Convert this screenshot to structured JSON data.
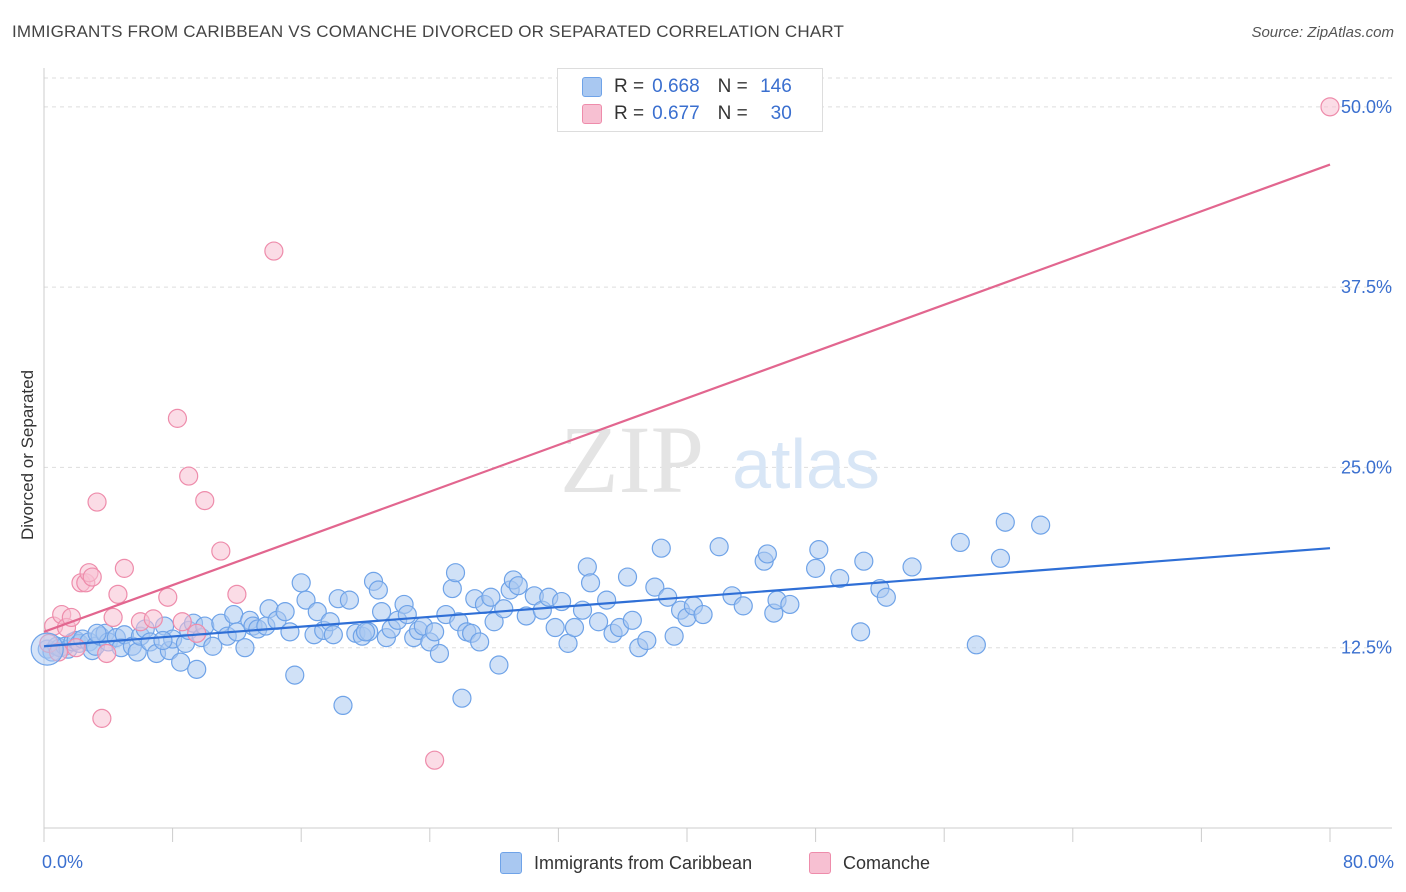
{
  "title": "IMMIGRANTS FROM CARIBBEAN VS COMANCHE DIVORCED OR SEPARATED CORRELATION CHART",
  "source": "Source: ZipAtlas.com",
  "watermark": {
    "zip": "ZIP",
    "atlas": "atlas"
  },
  "colors": {
    "blue": "#6fa3e8",
    "blue_fill": "#a9c8f1",
    "blue_line": "#2f6fd6",
    "pink": "#ee8cab",
    "pink_fill": "#f7c0d2",
    "pink_line": "#e2668f",
    "axis_label": "#3a6fcf"
  },
  "legend_top": {
    "rows": [
      {
        "r_label": "R =",
        "r_value": "0.668",
        "n_label": "N =",
        "n_value": "146"
      },
      {
        "r_label": "R =",
        "r_value": "0.677",
        "n_label": "N =",
        "n_value": "30"
      }
    ]
  },
  "chart_data": {
    "type": "scatter",
    "title": "IMMIGRANTS FROM CARIBBEAN VS COMANCHE DIVORCED OR SEPARATED CORRELATION CHART",
    "xlabel": "",
    "ylabel": "Divorced or Separated",
    "xlim": [
      0,
      80
    ],
    "ylim": [
      0,
      52
    ],
    "x_tick_labels": [
      "0.0%",
      "80.0%"
    ],
    "y_ticks": [
      12.5,
      25.0,
      37.5,
      50.0
    ],
    "y_tick_labels": [
      "12.5%",
      "25.0%",
      "37.5%",
      "50.0%"
    ],
    "grid": true,
    "legend_placement": "bottom",
    "series": [
      {
        "name": "Immigrants from Caribbean",
        "color": "#6fa3e8",
        "trend": {
          "x": [
            0,
            80
          ],
          "y": [
            12.6,
            19.4
          ]
        },
        "points": [
          [
            0.2,
            12.4
          ],
          [
            0.5,
            12.2
          ],
          [
            0.8,
            12.6
          ],
          [
            1.0,
            12.5
          ],
          [
            1.3,
            12.6
          ],
          [
            1.5,
            12.4
          ],
          [
            1.8,
            12.9
          ],
          [
            2.0,
            13.0
          ],
          [
            2.2,
            12.8
          ],
          [
            2.4,
            13.1
          ],
          [
            2.8,
            12.9
          ],
          [
            3.0,
            12.3
          ],
          [
            3.2,
            12.6
          ],
          [
            3.5,
            13.3
          ],
          [
            3.8,
            13.5
          ],
          [
            4.0,
            12.9
          ],
          [
            4.5,
            13.2
          ],
          [
            4.8,
            12.5
          ],
          [
            5.0,
            13.4
          ],
          [
            5.5,
            12.6
          ],
          [
            5.8,
            12.2
          ],
          [
            6.0,
            13.3
          ],
          [
            6.3,
            13.8
          ],
          [
            6.6,
            12.9
          ],
          [
            7.0,
            12.1
          ],
          [
            7.5,
            14.0
          ],
          [
            7.8,
            12.3
          ],
          [
            8.0,
            13.1
          ],
          [
            8.5,
            11.5
          ],
          [
            8.8,
            12.8
          ],
          [
            9.0,
            13.7
          ],
          [
            9.3,
            14.2
          ],
          [
            9.5,
            11.0
          ],
          [
            9.8,
            13.2
          ],
          [
            10.0,
            14.0
          ],
          [
            10.5,
            12.6
          ],
          [
            11.0,
            14.2
          ],
          [
            11.4,
            13.3
          ],
          [
            11.8,
            14.8
          ],
          [
            12.0,
            13.6
          ],
          [
            12.5,
            12.5
          ],
          [
            12.8,
            14.4
          ],
          [
            13.0,
            14.0
          ],
          [
            13.3,
            13.8
          ],
          [
            13.8,
            14.0
          ],
          [
            14.0,
            15.2
          ],
          [
            14.5,
            14.4
          ],
          [
            15.0,
            15.0
          ],
          [
            15.3,
            13.6
          ],
          [
            15.6,
            10.6
          ],
          [
            16.0,
            17.0
          ],
          [
            16.3,
            15.8
          ],
          [
            16.8,
            13.4
          ],
          [
            17.0,
            15.0
          ],
          [
            17.4,
            13.7
          ],
          [
            17.8,
            14.3
          ],
          [
            18.0,
            13.4
          ],
          [
            18.3,
            15.9
          ],
          [
            18.6,
            8.5
          ],
          [
            19.0,
            15.8
          ],
          [
            19.4,
            13.5
          ],
          [
            19.8,
            13.3
          ],
          [
            20.2,
            13.6
          ],
          [
            20.5,
            17.1
          ],
          [
            20.8,
            16.5
          ],
          [
            21.0,
            15.0
          ],
          [
            21.3,
            13.2
          ],
          [
            21.6,
            13.8
          ],
          [
            22.0,
            14.4
          ],
          [
            22.4,
            15.5
          ],
          [
            22.6,
            14.8
          ],
          [
            23.0,
            13.2
          ],
          [
            23.3,
            13.7
          ],
          [
            23.6,
            14.0
          ],
          [
            24.0,
            12.9
          ],
          [
            24.3,
            13.6
          ],
          [
            24.6,
            12.1
          ],
          [
            25.0,
            14.8
          ],
          [
            25.4,
            16.6
          ],
          [
            25.6,
            17.7
          ],
          [
            25.8,
            14.3
          ],
          [
            26.0,
            9.0
          ],
          [
            26.3,
            13.6
          ],
          [
            26.6,
            13.5
          ],
          [
            26.8,
            15.9
          ],
          [
            27.1,
            12.9
          ],
          [
            27.4,
            15.5
          ],
          [
            27.8,
            16.0
          ],
          [
            28.0,
            14.3
          ],
          [
            28.3,
            11.3
          ],
          [
            28.6,
            15.2
          ],
          [
            29.0,
            16.5
          ],
          [
            29.2,
            17.2
          ],
          [
            29.5,
            16.8
          ],
          [
            30.0,
            14.7
          ],
          [
            30.5,
            16.1
          ],
          [
            31.0,
            15.1
          ],
          [
            31.4,
            16.0
          ],
          [
            31.8,
            13.9
          ],
          [
            32.2,
            15.7
          ],
          [
            32.6,
            12.8
          ],
          [
            33.0,
            13.9
          ],
          [
            33.5,
            15.1
          ],
          [
            33.8,
            18.1
          ],
          [
            34.0,
            17.0
          ],
          [
            34.5,
            14.3
          ],
          [
            35.0,
            15.8
          ],
          [
            35.4,
            13.5
          ],
          [
            35.8,
            13.9
          ],
          [
            36.3,
            17.4
          ],
          [
            36.6,
            14.4
          ],
          [
            37.0,
            12.5
          ],
          [
            37.5,
            13.0
          ],
          [
            38.0,
            16.7
          ],
          [
            38.4,
            19.4
          ],
          [
            38.8,
            16.0
          ],
          [
            39.2,
            13.3
          ],
          [
            39.6,
            15.1
          ],
          [
            40.0,
            14.6
          ],
          [
            40.4,
            15.4
          ],
          [
            41.0,
            14.8
          ],
          [
            42.0,
            19.5
          ],
          [
            42.8,
            16.1
          ],
          [
            43.5,
            15.4
          ],
          [
            44.8,
            18.5
          ],
          [
            45.0,
            19.0
          ],
          [
            45.4,
            14.9
          ],
          [
            45.6,
            15.8
          ],
          [
            46.4,
            15.5
          ],
          [
            48.0,
            18.0
          ],
          [
            49.5,
            17.3
          ],
          [
            50.8,
            13.6
          ],
          [
            51.0,
            18.5
          ],
          [
            52.0,
            16.6
          ],
          [
            52.4,
            16.0
          ],
          [
            54.0,
            18.1
          ],
          [
            57.0,
            19.8
          ],
          [
            59.5,
            18.7
          ],
          [
            59.8,
            21.2
          ],
          [
            62.0,
            21.0
          ],
          [
            48.2,
            19.3
          ],
          [
            58.0,
            12.7
          ],
          [
            20.0,
            13.6
          ],
          [
            7.4,
            13.0
          ],
          [
            3.3,
            13.5
          ]
        ]
      },
      {
        "name": "Comanche",
        "color": "#ee8cab",
        "trend": {
          "x": [
            0,
            80
          ],
          "y": [
            13.6,
            46.0
          ]
        },
        "points": [
          [
            0.3,
            12.8
          ],
          [
            0.6,
            14.0
          ],
          [
            0.9,
            12.2
          ],
          [
            1.1,
            14.8
          ],
          [
            1.4,
            13.9
          ],
          [
            1.7,
            14.6
          ],
          [
            2.0,
            12.5
          ],
          [
            2.3,
            17.0
          ],
          [
            2.6,
            17.0
          ],
          [
            2.8,
            17.7
          ],
          [
            3.0,
            17.4
          ],
          [
            3.3,
            22.6
          ],
          [
            3.6,
            7.6
          ],
          [
            3.9,
            12.1
          ],
          [
            4.3,
            14.6
          ],
          [
            4.6,
            16.2
          ],
          [
            5.0,
            18.0
          ],
          [
            6.0,
            14.3
          ],
          [
            6.8,
            14.5
          ],
          [
            7.7,
            16.0
          ],
          [
            8.3,
            28.4
          ],
          [
            8.6,
            14.3
          ],
          [
            9.0,
            24.4
          ],
          [
            9.5,
            13.5
          ],
          [
            10.0,
            22.7
          ],
          [
            11.0,
            19.2
          ],
          [
            12.0,
            16.2
          ],
          [
            14.3,
            40.0
          ],
          [
            24.3,
            4.7
          ],
          [
            80.0,
            50.0
          ]
        ]
      }
    ]
  },
  "legend_bottom": {
    "items": [
      {
        "label": "Immigrants from Caribbean"
      },
      {
        "label": "Comanche"
      }
    ]
  }
}
